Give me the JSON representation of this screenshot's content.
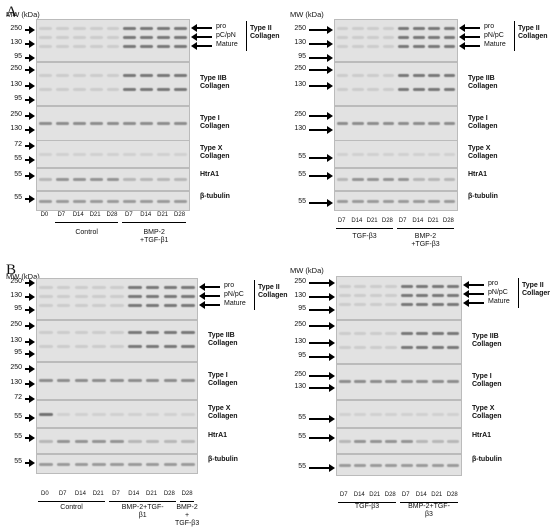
{
  "panels": [
    {
      "letter": "A",
      "left": {
        "mw_title": "MW (kDa)",
        "blots": [
          {
            "protein": "Type II\nCollagen",
            "mw": [
              "250",
              "130",
              "95"
            ]
          },
          {
            "protein": "Type IIB\nCollagen",
            "mw": [
              "250",
              "130",
              "95"
            ]
          },
          {
            "protein": "Type I\nCollagen",
            "mw": [
              "250",
              "130"
            ]
          },
          {
            "protein": "Type X\nCollagen",
            "mw": [
              "72",
              "55"
            ]
          },
          {
            "protein": "HtrA1",
            "mw": [
              "55"
            ]
          },
          {
            "protein": "β-tubulin",
            "mw": [
              "55"
            ]
          }
        ],
        "forms": [
          "pro",
          "pC/pN",
          "Mature"
        ],
        "lanes": [
          "D0",
          "D7",
          "D14",
          "D21",
          "D28",
          "D7",
          "D14",
          "D21",
          "D28"
        ],
        "groups": [
          "Control",
          "BMP-2\n+TGF-β1"
        ]
      },
      "right": {
        "mw_title": "MW (kDa)",
        "blots": [
          {
            "protein": "Type II\nCollagen",
            "mw": [
              "250",
              "130",
              "95"
            ]
          },
          {
            "protein": "Type IIB\nCollagen",
            "mw": [
              "250",
              "130"
            ]
          },
          {
            "protein": "Type I\nCollagen",
            "mw": [
              "250",
              "130"
            ]
          },
          {
            "protein": "Type X\nCollagen",
            "mw": [
              "55"
            ]
          },
          {
            "protein": "HtrA1",
            "mw": [
              "55"
            ]
          },
          {
            "protein": "β-tubulin",
            "mw": [
              "55"
            ]
          }
        ],
        "forms": [
          "pro",
          "pN/pC",
          "Mature"
        ],
        "lanes": [
          "D7",
          "D14",
          "D21",
          "D28",
          "D7",
          "D14",
          "D21",
          "D28"
        ],
        "groups": [
          "TGF-β3",
          "BMP-2\n+TGF-β3"
        ]
      }
    },
    {
      "letter": "B",
      "left": {
        "mw_title": "MW (kDa)",
        "blots": [
          {
            "protein": "Type II\nCollagen",
            "mw": [
              "250",
              "130",
              "95"
            ]
          },
          {
            "protein": "Type IIB\nCollagen",
            "mw": [
              "250",
              "130",
              "95"
            ]
          },
          {
            "protein": "Type I\nCollagen",
            "mw": [
              "250",
              "130"
            ]
          },
          {
            "protein": "Type X\nCollagen",
            "mw": [
              "72",
              "55"
            ]
          },
          {
            "protein": "HtrA1",
            "mw": [
              "55"
            ]
          },
          {
            "protein": "β-tubulin",
            "mw": [
              "55"
            ]
          }
        ],
        "forms": [
          "pro",
          "pN/pC",
          "Mature"
        ],
        "lanes": [
          "D0",
          "D7",
          "D14",
          "D21",
          "D7",
          "D14",
          "D21",
          "D28",
          "D28"
        ],
        "groups": [
          "Control",
          "BMP-2+TGF-\nβ1",
          "BMP-2 +\nTGF-β3"
        ]
      },
      "right": {
        "mw_title": "MW (kDa)",
        "blots": [
          {
            "protein": "Type II\nCollagen",
            "mw": [
              "250",
              "130",
              "95"
            ]
          },
          {
            "protein": "Type IIB\nCollagen",
            "mw": [
              "250",
              "130",
              "95"
            ]
          },
          {
            "protein": "Type I\nCollagen",
            "mw": [
              "250",
              "130"
            ]
          },
          {
            "protein": "Type X\nCollagen",
            "mw": [
              "55"
            ]
          },
          {
            "protein": "HtrA1",
            "mw": [
              "55"
            ]
          },
          {
            "protein": "β-tubulin",
            "mw": [
              "55"
            ]
          }
        ],
        "forms": [
          "pro",
          "pN/pC",
          "Mature"
        ],
        "lanes": [
          "D7",
          "D14",
          "D21",
          "D28",
          "D7",
          "D14",
          "D21",
          "D28"
        ],
        "groups": [
          "TGF-β3",
          "BMP-2+TGF-\nβ3"
        ]
      }
    }
  ]
}
